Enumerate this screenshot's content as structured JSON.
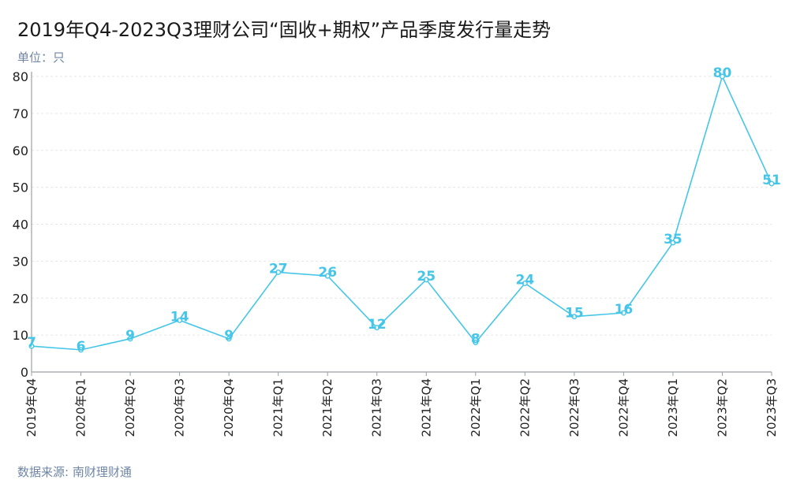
{
  "title": "2019年Q4-2023Q3理财公司“固收+期权”产品季度发行量走势",
  "unit_label": "单位：只",
  "source": "数据来源: 南财理财通",
  "colors": {
    "line": "#45c6e8",
    "axis": "#9aa0a6",
    "grid": "#e6e6e6"
  },
  "chart_data": {
    "type": "line",
    "title": "2019年Q4-2023Q3理财公司“固收+期权”产品季度发行量走势",
    "xlabel": "",
    "ylabel": "单位：只",
    "ylim": [
      0,
      80
    ],
    "yticks": [
      0,
      10,
      20,
      30,
      40,
      50,
      60,
      70,
      80
    ],
    "grid": true,
    "categories": [
      "2019年Q4",
      "2020年Q1",
      "2020年Q2",
      "2020年Q3",
      "2020年Q4",
      "2021年Q1",
      "2021年Q2",
      "2021年Q3",
      "2021年Q4",
      "2022年Q1",
      "2022年Q2",
      "2022年Q3",
      "2022年Q4",
      "2023年Q1",
      "2023年Q2",
      "2023年Q3"
    ],
    "values": [
      7,
      6,
      9,
      14,
      9,
      27,
      26,
      12,
      25,
      8,
      24,
      15,
      16,
      35,
      80,
      51
    ]
  }
}
